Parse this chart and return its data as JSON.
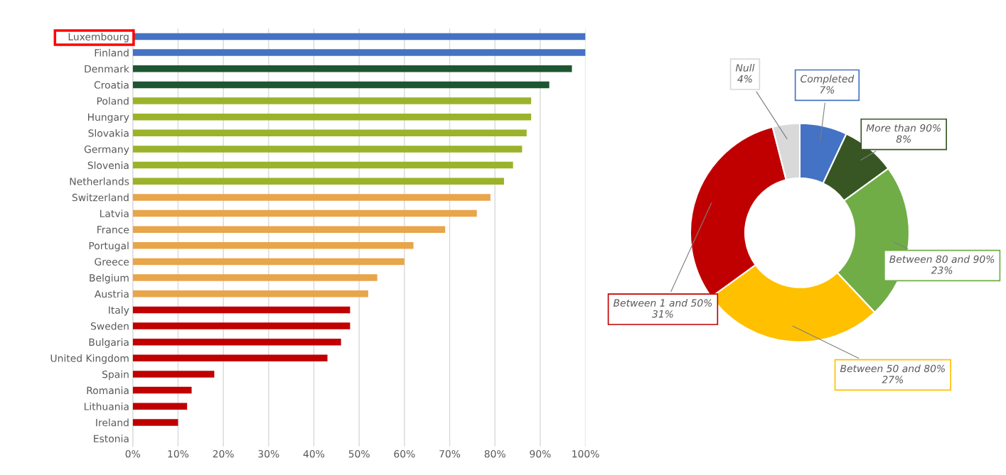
{
  "chart_data": [
    {
      "type": "bar",
      "orientation": "horizontal",
      "categories": [
        "Luxembourg",
        "Finland",
        "Denmark",
        "Croatia",
        "Poland",
        "Hungary",
        "Slovakia",
        "Germany",
        "Slovenia",
        "Netherlands",
        "Switzerland",
        "Latvia",
        "France",
        "Portugal",
        "Greece",
        "Belgium",
        "Austria",
        "Italy",
        "Sweden",
        "Bulgaria",
        "United Kingdom",
        "Spain",
        "Romania",
        "Lithuania",
        "Ireland",
        "Estonia"
      ],
      "values": [
        100,
        100,
        97,
        92,
        88,
        88,
        87,
        86,
        84,
        82,
        79,
        76,
        69,
        62,
        60,
        54,
        52,
        48,
        48,
        46,
        43,
        18,
        13,
        12,
        10,
        0
      ],
      "colors": [
        "#4472c4",
        "#4472c4",
        "#1e5631",
        "#1e5631",
        "#9ab32a",
        "#9ab32a",
        "#9ab32a",
        "#9ab32a",
        "#9ab32a",
        "#9ab32a",
        "#e8a54a",
        "#e8a54a",
        "#e8a54a",
        "#e8a54a",
        "#e8a54a",
        "#e8a54a",
        "#e8a54a",
        "#c00000",
        "#c00000",
        "#c00000",
        "#c00000",
        "#c00000",
        "#c00000",
        "#c00000",
        "#c00000",
        "#c00000"
      ],
      "xlim": [
        0,
        100
      ],
      "xticks": [
        {
          "value": 0,
          "label": "0%"
        },
        {
          "value": 10,
          "label": "10%"
        },
        {
          "value": 20,
          "label": "20%"
        },
        {
          "value": 30,
          "label": "30%"
        },
        {
          "value": 40,
          "label": "40%"
        },
        {
          "value": 50,
          "label": "50%"
        },
        {
          "value": 60,
          "label": "60%"
        },
        {
          "value": 70,
          "label": "70%"
        },
        {
          "value": 80,
          "label": "80%"
        },
        {
          "value": 90,
          "label": "90%"
        },
        {
          "value": 100,
          "label": "100%"
        }
      ],
      "grid": "x"
    },
    {
      "type": "donut",
      "categories": [
        "Completed",
        "More than 90%",
        "Between 80 and 90%",
        "Between 50 and 80%",
        "Between 1 and 50%",
        "Null"
      ],
      "values": [
        7,
        8,
        23,
        27,
        31,
        4
      ],
      "value_labels": [
        "7%",
        "8%",
        "23%",
        "27%",
        "31%",
        "4%"
      ],
      "colors": [
        "#4472c4",
        "#375623",
        "#70ad47",
        "#ffc000",
        "#c00000",
        "#d9d9d9"
      ]
    }
  ]
}
